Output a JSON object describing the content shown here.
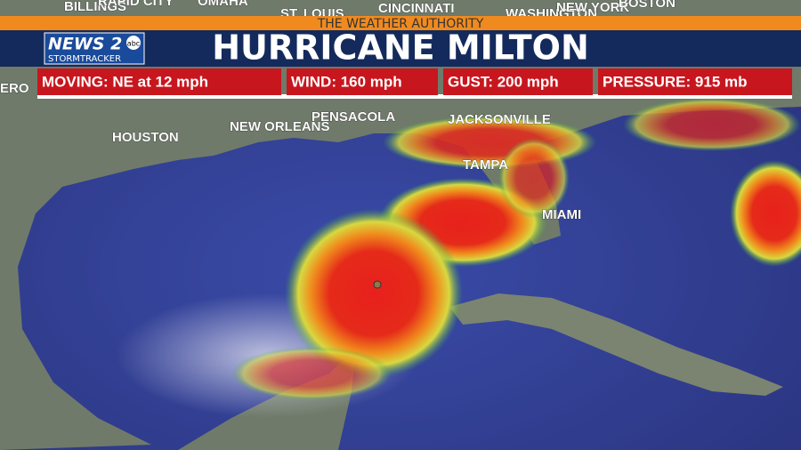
{
  "header": {
    "tagline": "THE WEATHER AUTHORITY",
    "title": "HURRICANE MILTON",
    "logo": {
      "name": "NEWS 2",
      "network": "abc",
      "brand": "STORMTRACKER"
    }
  },
  "stats": [
    "MOVING: NE at 12 mph",
    "WIND: 160 mph",
    "GUST: 200 mph",
    "PRESSURE: 915 mb"
  ],
  "cities": [
    "BILLINGS",
    "RAPID CITY",
    "OMAHA",
    "ST. LOUIS",
    "CINCINNATI",
    "WASHINGTON",
    "NEW YORK",
    "BOSTON",
    "ERO",
    "HOUSTON",
    "NEW ORLEANS",
    "PENSACOLA",
    "JACKSONVILLE",
    "TAMPA",
    "MIAMI"
  ]
}
